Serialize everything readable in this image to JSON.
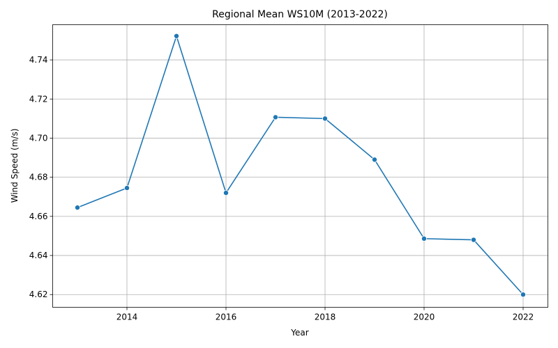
{
  "chart_data": {
    "type": "line",
    "title": "Regional Mean WS10M (2013-2022)",
    "xlabel": "Year",
    "ylabel": "Wind Speed (m/s)",
    "xlim": [
      2012.5,
      2022.5
    ],
    "ylim": [
      4.6135,
      4.758
    ],
    "xticks": [
      2014,
      2016,
      2018,
      2020,
      2022
    ],
    "xtick_labels": [
      "2014",
      "2016",
      "2018",
      "2020",
      "2022"
    ],
    "yticks": [
      4.62,
      4.64,
      4.66,
      4.68,
      4.7,
      4.72,
      4.74
    ],
    "ytick_labels": [
      "4.62",
      "4.64",
      "4.66",
      "4.68",
      "4.70",
      "4.72",
      "4.74"
    ],
    "grid": true,
    "legend": false,
    "series": [
      {
        "color": "#1f77b4",
        "marker": "circle",
        "x": [
          2013,
          2014,
          2015,
          2016,
          2017,
          2018,
          2019,
          2020,
          2021,
          2022
        ],
        "y": [
          4.6645,
          4.6745,
          4.7522,
          4.672,
          4.7107,
          4.71,
          4.689,
          4.6486,
          4.648,
          4.62
        ]
      }
    ]
  }
}
